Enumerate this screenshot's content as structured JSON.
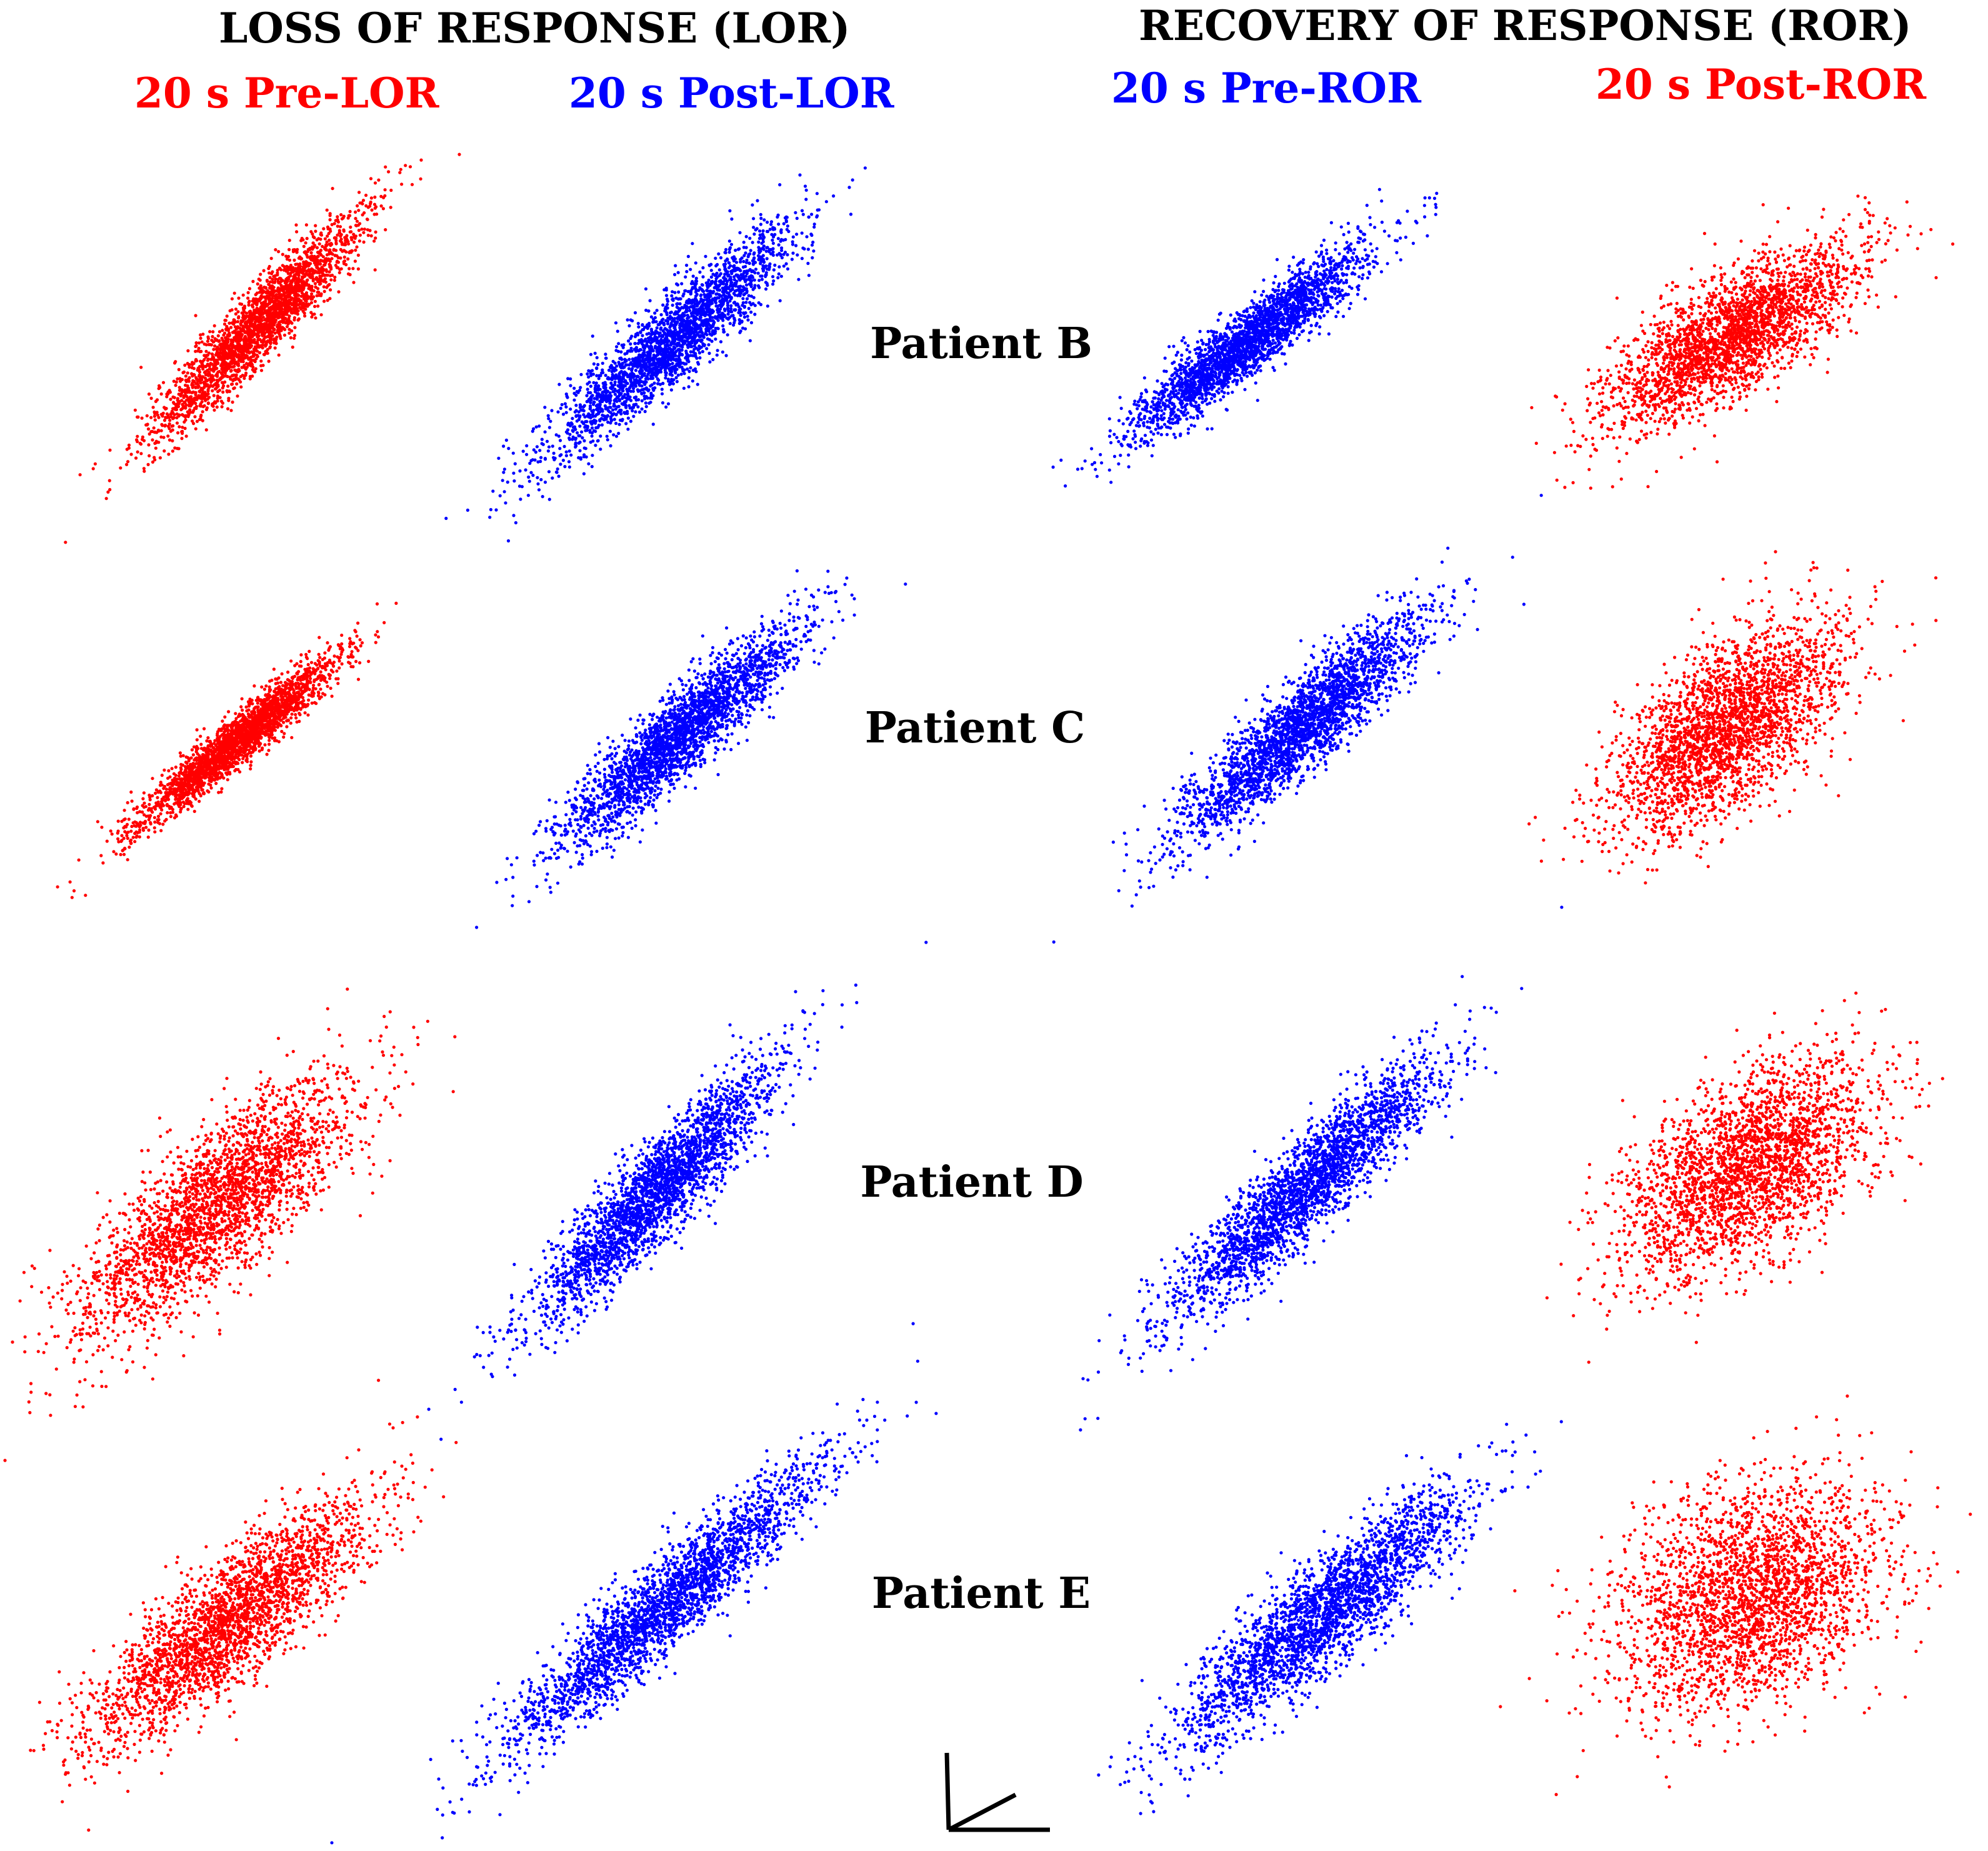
{
  "titles": {
    "lor": "LOSS OF RESPONSE (LOR)",
    "ror": "RECOVERY OF RESPONSE (ROR)"
  },
  "conditions": {
    "pre_lor": "20 s Pre-LOR",
    "post_lor": "20 s Post-LOR",
    "pre_ror": "20 s Pre-ROR",
    "post_ror": "20 s Post-ROR"
  },
  "colors": {
    "red": "#ff0000",
    "blue": "#0000ff",
    "black": "#000000"
  },
  "chart_data": {
    "type": "scatter",
    "panels": [
      {
        "patient": "Patient B",
        "condition": "20 s Pre-LOR",
        "color": "red",
        "n": 2600,
        "correlation": 0.93
      },
      {
        "patient": "Patient B",
        "condition": "20 s Post-LOR",
        "color": "blue",
        "n": 2600,
        "correlation": 0.92
      },
      {
        "patient": "Patient B",
        "condition": "20 s Pre-ROR",
        "color": "blue",
        "n": 2600,
        "correlation": 0.93
      },
      {
        "patient": "Patient B",
        "condition": "20 s Post-ROR",
        "color": "red",
        "n": 2600,
        "correlation": 0.78
      },
      {
        "patient": "Patient C",
        "condition": "20 s Pre-LOR",
        "color": "red",
        "n": 2600,
        "correlation": 0.95
      },
      {
        "patient": "Patient C",
        "condition": "20 s Post-LOR",
        "color": "blue",
        "n": 2600,
        "correlation": 0.92
      },
      {
        "patient": "Patient C",
        "condition": "20 s Pre-ROR",
        "color": "blue",
        "n": 2600,
        "correlation": 0.9
      },
      {
        "patient": "Patient C",
        "condition": "20 s Post-ROR",
        "color": "red",
        "n": 2600,
        "correlation": 0.62
      },
      {
        "patient": "Patient D",
        "condition": "20 s Pre-LOR",
        "color": "red",
        "n": 2600,
        "correlation": 0.8
      },
      {
        "patient": "Patient D",
        "condition": "20 s Post-LOR",
        "color": "blue",
        "n": 2600,
        "correlation": 0.91
      },
      {
        "patient": "Patient D",
        "condition": "20 s Pre-ROR",
        "color": "blue",
        "n": 2600,
        "correlation": 0.92
      },
      {
        "patient": "Patient D",
        "condition": "20 s Post-ROR",
        "color": "red",
        "n": 2600,
        "correlation": 0.55
      },
      {
        "patient": "Patient E",
        "condition": "20 s Pre-LOR",
        "color": "red",
        "n": 2600,
        "correlation": 0.86
      },
      {
        "patient": "Patient E",
        "condition": "20 s Post-LOR",
        "color": "blue",
        "n": 2600,
        "correlation": 0.94
      },
      {
        "patient": "Patient E",
        "condition": "20 s Pre-ROR",
        "color": "blue",
        "n": 2600,
        "correlation": 0.89
      },
      {
        "patient": "Patient E",
        "condition": "20 s Post-ROR",
        "color": "red",
        "n": 2600,
        "correlation": 0.35
      }
    ],
    "patients": [
      "Patient B",
      "Patient C",
      "Patient D",
      "Patient E"
    ],
    "grid": false,
    "legend": "none"
  }
}
